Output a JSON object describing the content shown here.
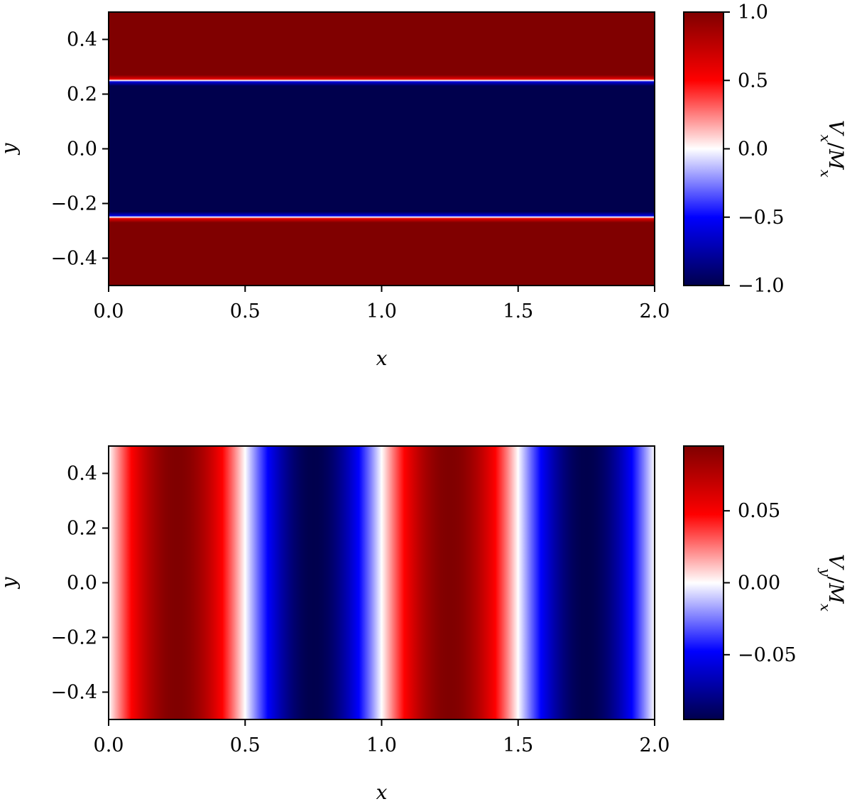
{
  "chart_data": [
    {
      "type": "heatmap",
      "title": "",
      "xlabel": "x",
      "ylabel": "y",
      "xlim": [
        0.0,
        2.0
      ],
      "ylim": [
        -0.5,
        0.5
      ],
      "x_ticks": [
        "0.0",
        "0.5",
        "1.0",
        "1.5",
        "2.0"
      ],
      "y_ticks": [
        "0.4",
        "0.2",
        "0.0",
        "−0.2",
        "−0.4"
      ],
      "colormap": "seismic",
      "colors": {
        "low": "#00004c",
        "mid": "#ffffff",
        "high": "#800000"
      },
      "field_profile": {
        "along": "y",
        "y": [
          -0.5,
          -0.27,
          -0.255,
          -0.25,
          -0.245,
          -0.23,
          0.23,
          0.245,
          0.25,
          0.255,
          0.27,
          0.5
        ],
        "value": [
          1.0,
          1.0,
          0.6,
          0.0,
          -0.6,
          -1.0,
          -1.0,
          -0.6,
          0.0,
          0.6,
          1.0,
          1.0
        ]
      },
      "colorbar": {
        "label": "V_x/M_x",
        "range": [
          -1.0,
          1.0
        ],
        "ticks": [
          "1.0",
          "0.5",
          "0.0",
          "−0.5",
          "−1.0"
        ]
      }
    },
    {
      "type": "heatmap",
      "title": "",
      "xlabel": "x",
      "ylabel": "y",
      "xlim": [
        0.0,
        2.0
      ],
      "ylim": [
        -0.5,
        0.5
      ],
      "x_ticks": [
        "0.0",
        "0.5",
        "1.0",
        "1.5",
        "2.0"
      ],
      "y_ticks": [
        "0.4",
        "0.2",
        "0.0",
        "−0.2",
        "−0.4"
      ],
      "colormap": "seismic",
      "colors": {
        "low": "#00004c",
        "mid": "#ffffff",
        "high": "#800000"
      },
      "field_profile": {
        "along": "x",
        "function": "amplitude * sin(2*pi*x)",
        "amplitude": 0.095
      },
      "colorbar": {
        "label": "V_y/M_x",
        "range": [
          -0.095,
          0.095
        ],
        "ticks": [
          "0.05",
          "0.00",
          "−0.05"
        ]
      }
    }
  ]
}
